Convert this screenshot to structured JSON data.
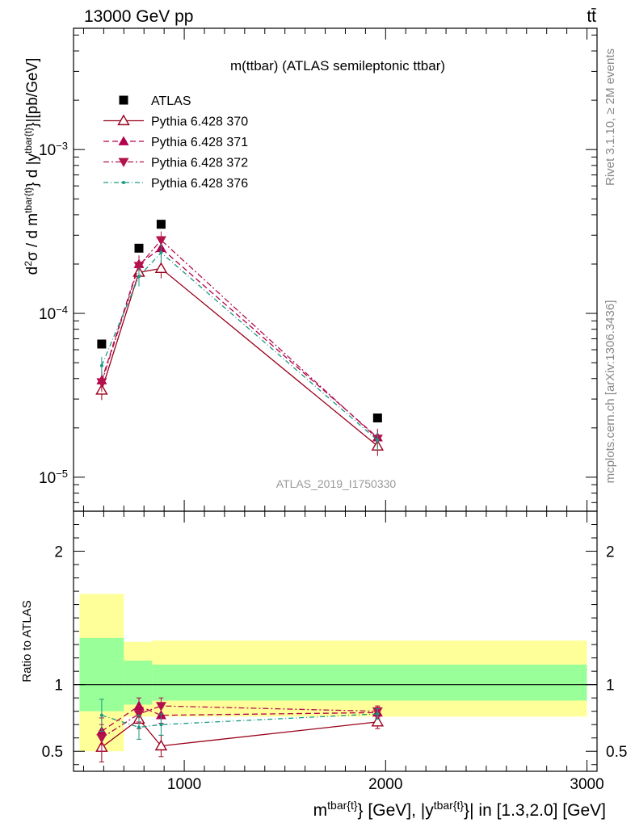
{
  "header": {
    "left": "13000 GeV pp",
    "right": "tt̄"
  },
  "side_labels": {
    "rivet": "Rivet 3.1.10, ≥ 2M events",
    "mcplots": "mcplots.cern.ch [arXiv:1306.3436]"
  },
  "chart_data": {
    "type": "scatter",
    "title": "m(ttbar) (ATLAS semileptonic ttbar)",
    "watermark": "ATLAS_2019_I1750330",
    "xlabel": {
      "p1": "m",
      "s1": "tbar{t}",
      "p2": "} [GeV], |y",
      "s2": "tbar{t}",
      "p3": "}| in [1.3,2.0] [GeV]"
    },
    "ylabel_main": "d²σ / d m^tbar{t}} d |y^tbar{t}}|[pb/GeV]",
    "ylabel_ratio": "Ratio to ATLAS",
    "xlim": [
      450,
      3050
    ],
    "ylim_main": [
      6.2e-06,
      0.0055
    ],
    "log_y_main": true,
    "ylim_ratio": [
      0.35,
      2.3
    ],
    "x_ticks_major": [
      1000,
      2000,
      3000
    ],
    "x_tick_labels": [
      "1000",
      "2000",
      "3000"
    ],
    "y_ticks_main": [
      1e-05,
      0.0001,
      0.001
    ],
    "y_tick_labels_main": [
      "10",
      "10",
      "10"
    ],
    "y_tick_exponents_main": [
      "−5",
      "−4",
      "−3"
    ],
    "y_ticks_ratio": [
      0.5,
      1,
      2
    ],
    "y_tick_labels_ratio": [
      "0.5",
      "1",
      "2"
    ],
    "bins": [
      {
        "lo": 480,
        "hi": 700,
        "x": 590
      },
      {
        "lo": 700,
        "hi": 840,
        "x": 775
      },
      {
        "lo": 840,
        "hi": 1000,
        "x": 885
      },
      {
        "lo": 1000,
        "hi": 3000,
        "x": 1960
      }
    ],
    "bands": [
      {
        "lo": 480,
        "hi": 700,
        "green": [
          0.8,
          1.35
        ],
        "yellow": [
          0.5,
          1.68
        ]
      },
      {
        "lo": 700,
        "hi": 840,
        "green": [
          0.85,
          1.18
        ],
        "yellow": [
          0.76,
          1.32
        ]
      },
      {
        "lo": 840,
        "hi": 3000,
        "green": [
          0.88,
          1.15
        ],
        "yellow": [
          0.76,
          1.33
        ]
      }
    ],
    "legend_position": "top-left",
    "series": [
      {
        "name": "ATLAS",
        "color": "#000000",
        "marker": "square",
        "dash": "",
        "values": [
          6.5e-05,
          0.00025,
          0.00035,
          2.3e-05
        ],
        "ratio": [
          1,
          1,
          1,
          1
        ],
        "ratio_err": [
          0,
          0,
          0,
          0
        ]
      },
      {
        "name": "Pythia 6.428 370",
        "color": "#99001a",
        "marker": "triangle-up-open",
        "dash": "",
        "values": [
          3.4e-05,
          0.000178,
          0.000188,
          1.55e-05
        ],
        "ratio": [
          0.53,
          0.74,
          0.54,
          0.72
        ],
        "ratio_err": [
          0.11,
          0.07,
          0.08,
          0.05
        ]
      },
      {
        "name": "Pythia 6.428 371",
        "color": "#b3004d",
        "marker": "triangle-up",
        "dash": "7,4",
        "values": [
          3.9e-05,
          0.0002,
          0.00025,
          1.75e-05
        ],
        "ratio": [
          0.65,
          0.84,
          0.77,
          0.79
        ],
        "ratio_err": [
          0.1,
          0.06,
          0.06,
          0.04
        ]
      },
      {
        "name": "Pythia 6.428 372",
        "color": "#b3124d",
        "marker": "triangle-down",
        "dash": "7,3,2,3",
        "values": [
          3.8e-05,
          0.000195,
          0.00028,
          1.72e-05
        ],
        "ratio": [
          0.6,
          0.78,
          0.84,
          0.8
        ],
        "ratio_err": [
          0.1,
          0.06,
          0.06,
          0.04
        ]
      },
      {
        "name": "Pythia 6.428 376",
        "color": "#1a9980",
        "marker": "dot",
        "dash": "6,3,1,3",
        "values": [
          4.8e-05,
          0.000168,
          0.000235,
          1.68e-05
        ],
        "ratio": [
          0.77,
          0.68,
          0.7,
          0.78
        ],
        "ratio_err": [
          0.12,
          0.09,
          0.08,
          0.04
        ]
      }
    ]
  }
}
